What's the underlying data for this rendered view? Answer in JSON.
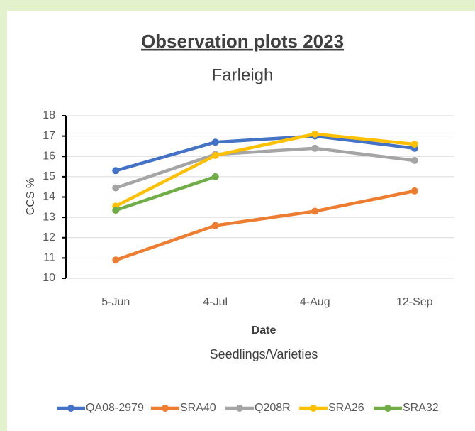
{
  "chart_data": {
    "type": "line",
    "title": "Observation plots 2023",
    "subtitle": "Farleigh",
    "x_label": "Date",
    "x_sublabel": "Seedlings/Varieties",
    "y_label": "CCS %",
    "categories": [
      "5-Jun",
      "4-Jul",
      "4-Aug",
      "12-Sep"
    ],
    "series": [
      {
        "name": "QA08-2979",
        "color": "#4472c4",
        "values": [
          15.3,
          16.7,
          17.0,
          16.4
        ]
      },
      {
        "name": "SRA40",
        "color": "#ed7d31",
        "values": [
          10.9,
          12.6,
          13.3,
          14.3
        ]
      },
      {
        "name": "Q208R",
        "color": "#a5a5a5",
        "values": [
          14.45,
          16.1,
          16.4,
          15.8
        ]
      },
      {
        "name": "SRA26",
        "color": "#ffc000",
        "values": [
          13.55,
          16.05,
          17.1,
          16.6
        ]
      },
      {
        "name": "SRA32",
        "color": "#70ad47",
        "values": [
          13.35,
          15.0,
          null,
          null
        ]
      }
    ],
    "ylim": [
      10,
      18
    ],
    "yticks": [
      10,
      11,
      12,
      13,
      14,
      15,
      16,
      17,
      18
    ],
    "grid": true,
    "legend": "bottom"
  }
}
